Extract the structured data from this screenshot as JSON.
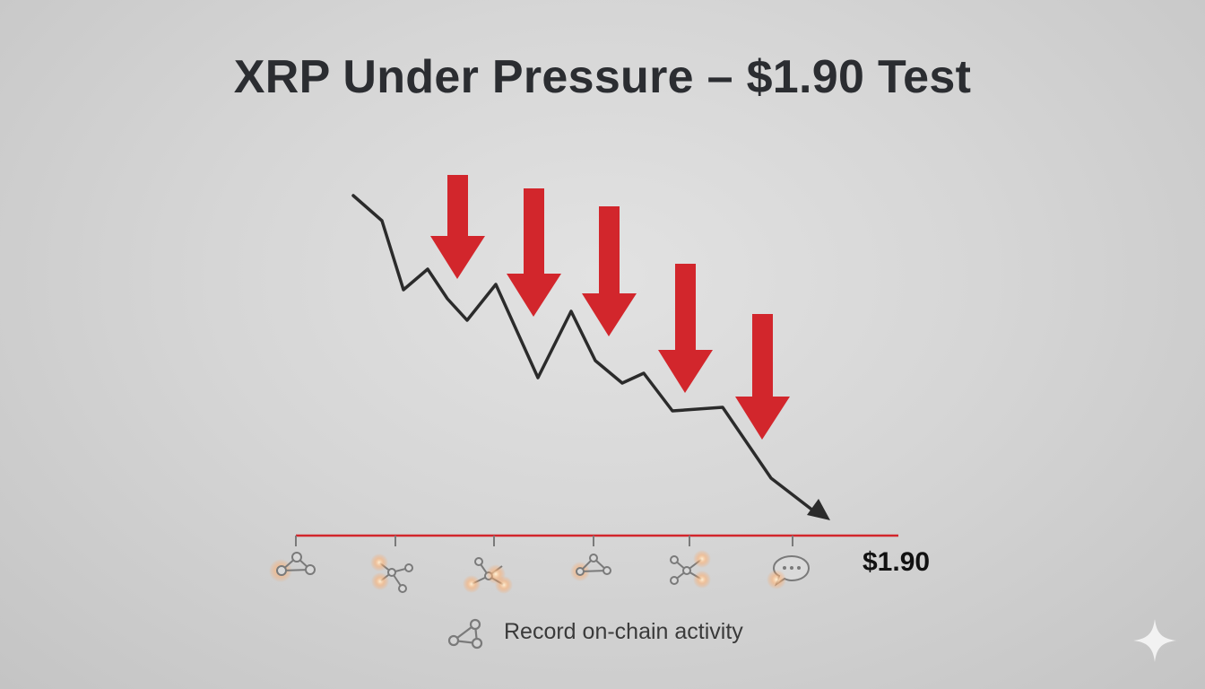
{
  "title": "XRP Under Pressure – $1.90 Test",
  "price_level": {
    "label": "$1.90",
    "color": "#d2262c"
  },
  "price_line": {
    "color": "#2b2b2b",
    "direction": "down"
  },
  "sell_arrows": {
    "count": 5,
    "color": "#d2262c"
  },
  "timeline_icons": [
    {
      "icon": "network-nodes-icon"
    },
    {
      "icon": "network-nodes-icon"
    },
    {
      "icon": "network-nodes-icon"
    },
    {
      "icon": "network-nodes-icon"
    },
    {
      "icon": "network-nodes-icon"
    },
    {
      "icon": "chat-bubble-icon"
    }
  ],
  "footer": {
    "icon": "network-nodes-icon",
    "text": "Record on-chain activity"
  },
  "corner_icon": "sparkle-icon"
}
